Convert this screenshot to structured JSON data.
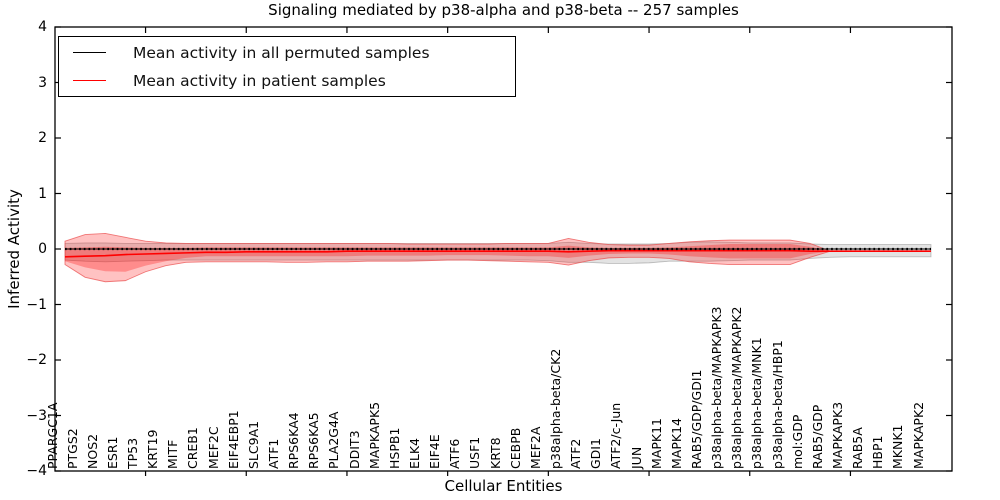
{
  "chart_data": {
    "type": "line",
    "title": "Signaling mediated by p38-alpha and p38-beta -- 257 samples",
    "xlabel": "Cellular Entities",
    "ylabel": "Inferred Activity",
    "ylim": [
      -4,
      4
    ],
    "yticks": [
      "4",
      "3",
      "2",
      "1",
      "0",
      "−1",
      "−2",
      "−3",
      "−4"
    ],
    "grid": "off",
    "legend_position": "upper-left",
    "legend": [
      {
        "label": "Mean activity in all permuted samples",
        "color": "#000000",
        "style": "solid"
      },
      {
        "label": "Mean activity in patient samples",
        "color": "#ff0000",
        "style": "solid"
      }
    ],
    "colors": {
      "patient_line": "#ff0000",
      "permuted_line": "#000000",
      "patient_band_fill": "rgba(255,0,0,0.24)",
      "patient_band_edge": "rgba(235,80,80,0.75)",
      "permuted_band_fill": "rgba(0,0,0,0.11)",
      "permuted_band_edge": "rgba(0,0,0,0.22)",
      "frame": "#000000"
    },
    "entities": [
      "PPARGC1A",
      "PTGS2",
      "NOS2",
      "ESR1",
      "TP53",
      "KRT19",
      "MITF",
      "CREB1",
      "MEF2C",
      "EIF4EBP1",
      "SLC9A1",
      "ATF1",
      "RPS6KA4",
      "RPS6KA5",
      "PLA2G4A",
      "DDIT3",
      "MAPKAPK5",
      "HSPB1",
      "ELK4",
      "EIF4E",
      "ATF6",
      "USF1",
      "KRT8",
      "CEBPB",
      "MEF2A",
      "p38alpha-beta/CK2",
      "ATF2",
      "GDI1",
      "ATF2/c-Jun",
      "JUN",
      "MAPK11",
      "MAPK14",
      "RAB5/GDP/GDI1",
      "p38alpha-beta/MAPKAPK3",
      "p38alpha-beta/MAPKAPK2",
      "p38alpha-beta/MNK1",
      "p38alpha-beta/HBP1",
      "mol:GDP",
      "RAB5/GDP",
      "MAPKAPK3",
      "RAB5A",
      "HBP1",
      "MKNK1",
      "MAPKAPK2"
    ],
    "series": {
      "permuted_mean": [
        0,
        0,
        0,
        0,
        0,
        0,
        0,
        0,
        0,
        0,
        0,
        0,
        0,
        0,
        0,
        0,
        0,
        0,
        0,
        0,
        0,
        0,
        0,
        0,
        0,
        0,
        0,
        0,
        0,
        0,
        0,
        0,
        0,
        0,
        0,
        0,
        0,
        0,
        0,
        0,
        0,
        0,
        0,
        0
      ],
      "patient_mean": [
        -0.14,
        -0.13,
        -0.12,
        -0.1,
        -0.09,
        -0.08,
        -0.07,
        -0.06,
        -0.06,
        -0.05,
        -0.05,
        -0.05,
        -0.05,
        -0.05,
        -0.04,
        -0.04,
        -0.04,
        -0.04,
        -0.04,
        -0.04,
        -0.04,
        -0.04,
        -0.04,
        -0.04,
        -0.04,
        -0.05,
        -0.04,
        -0.03,
        -0.03,
        -0.03,
        -0.03,
        -0.03,
        -0.03,
        -0.03,
        -0.03,
        -0.03,
        -0.03,
        -0.04,
        -0.04,
        -0.04,
        -0.04,
        -0.04,
        -0.04,
        -0.04
      ],
      "patient_band_outer_top": [
        0.14,
        0.26,
        0.28,
        0.21,
        0.14,
        0.11,
        0.1,
        0.1,
        0.1,
        0.1,
        0.1,
        0.1,
        0.1,
        0.1,
        0.1,
        0.1,
        0.1,
        0.09,
        0.09,
        0.09,
        0.09,
        0.09,
        0.1,
        0.1,
        0.1,
        0.19,
        0.12,
        0.08,
        0.07,
        0.07,
        0.1,
        0.13,
        0.15,
        0.16,
        0.16,
        0.16,
        0.16,
        0.1,
        -0.04,
        -0.04,
        -0.04,
        -0.04,
        -0.04,
        -0.04
      ],
      "patient_band_outer_bottom": [
        -0.28,
        -0.51,
        -0.59,
        -0.57,
        -0.41,
        -0.3,
        -0.24,
        -0.23,
        -0.23,
        -0.23,
        -0.23,
        -0.24,
        -0.24,
        -0.23,
        -0.23,
        -0.22,
        -0.22,
        -0.22,
        -0.21,
        -0.2,
        -0.2,
        -0.21,
        -0.22,
        -0.23,
        -0.24,
        -0.29,
        -0.21,
        -0.16,
        -0.15,
        -0.15,
        -0.17,
        -0.23,
        -0.26,
        -0.28,
        -0.28,
        -0.28,
        -0.28,
        -0.15,
        -0.04,
        -0.04,
        -0.04,
        -0.04,
        -0.04,
        -0.04
      ],
      "patient_band_inner_top": [
        0.02,
        0.03,
        0.04,
        0.03,
        0.02,
        0.02,
        0.02,
        0.03,
        0.03,
        0.03,
        0.03,
        0.03,
        0.03,
        0.03,
        0.03,
        0.03,
        0.03,
        0.03,
        0.03,
        0.03,
        0.03,
        0.03,
        0.03,
        0.03,
        0.03,
        0.06,
        0.03,
        0.02,
        0.02,
        0.02,
        0.03,
        0.05,
        0.07,
        0.09,
        0.09,
        0.09,
        0.09,
        0.04,
        -0.04,
        -0.04,
        -0.04,
        -0.04,
        -0.04,
        -0.04
      ],
      "patient_band_inner_bottom": [
        -0.22,
        -0.33,
        -0.4,
        -0.41,
        -0.3,
        -0.22,
        -0.16,
        -0.13,
        -0.13,
        -0.13,
        -0.13,
        -0.13,
        -0.13,
        -0.13,
        -0.13,
        -0.12,
        -0.12,
        -0.12,
        -0.12,
        -0.11,
        -0.11,
        -0.11,
        -0.12,
        -0.13,
        -0.13,
        -0.16,
        -0.12,
        -0.09,
        -0.08,
        -0.08,
        -0.1,
        -0.13,
        -0.15,
        -0.17,
        -0.17,
        -0.17,
        -0.17,
        -0.09,
        -0.04,
        -0.04,
        -0.04,
        -0.04,
        -0.04,
        -0.04
      ],
      "permuted_band_top": [
        0.1,
        0.11,
        0.11,
        0.1,
        0.1,
        0.1,
        0.1,
        0.1,
        0.1,
        0.1,
        0.1,
        0.1,
        0.1,
        0.1,
        0.1,
        0.1,
        0.1,
        0.1,
        0.1,
        0.1,
        0.1,
        0.1,
        0.1,
        0.1,
        0.1,
        0.12,
        0.1,
        0.09,
        0.09,
        0.09,
        0.1,
        0.12,
        0.13,
        0.12,
        0.11,
        0.11,
        0.11,
        0.09,
        0.08,
        0.08,
        0.08,
        0.08,
        0.08,
        0.08
      ],
      "permuted_band_bottom": [
        -0.2,
        -0.22,
        -0.23,
        -0.22,
        -0.21,
        -0.2,
        -0.2,
        -0.2,
        -0.2,
        -0.2,
        -0.2,
        -0.2,
        -0.2,
        -0.2,
        -0.2,
        -0.2,
        -0.2,
        -0.2,
        -0.2,
        -0.2,
        -0.2,
        -0.2,
        -0.2,
        -0.2,
        -0.21,
        -0.24,
        -0.24,
        -0.26,
        -0.26,
        -0.25,
        -0.22,
        -0.22,
        -0.22,
        -0.21,
        -0.2,
        -0.2,
        -0.2,
        -0.17,
        -0.15,
        -0.14,
        -0.14,
        -0.14,
        -0.14,
        -0.14
      ]
    }
  }
}
